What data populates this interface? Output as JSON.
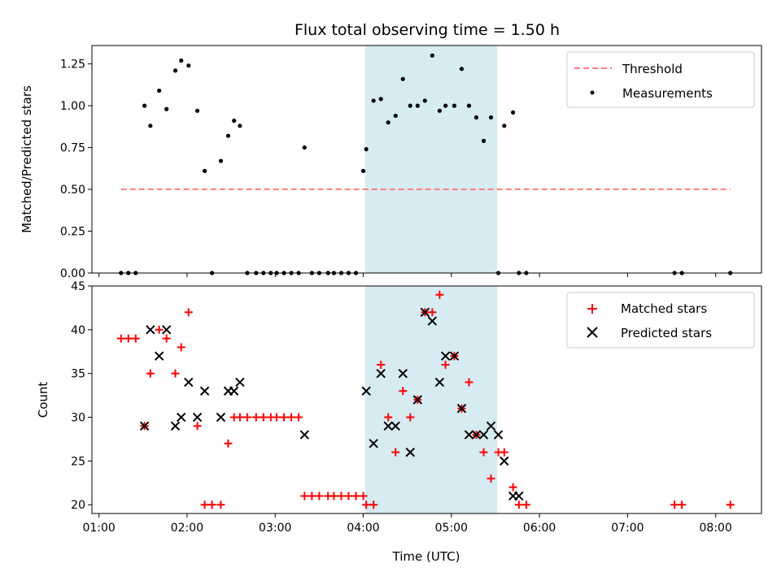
{
  "colors": {
    "highlight": "#add8e6",
    "threshold": "#ff7f7f",
    "matched": "#ff0000",
    "predicted": "#000000",
    "measurement": "#000000"
  },
  "chart_data": [
    {
      "type": "scatter",
      "title": "Flux total observing time = 1.50 h",
      "xlabel": "",
      "ylabel": "Matched/Predicted stars",
      "xlim_hours": [
        0.92,
        8.52
      ],
      "ylim": [
        0,
        1.36
      ],
      "yticks": [
        "0.00",
        "0.25",
        "0.50",
        "0.75",
        "1.00",
        "1.25"
      ],
      "highlight_span_hours": [
        4.02,
        5.52
      ],
      "legend_position": "top-right",
      "legend": [
        "Threshold",
        "Measurements"
      ],
      "series": [
        {
          "name": "Threshold",
          "style": "dashed-line",
          "x": [
            "01:15",
            "08:10"
          ],
          "y": [
            0.5,
            0.5
          ]
        },
        {
          "name": "Measurements",
          "style": "dots",
          "x": [
            "01:15",
            "01:20",
            "01:25",
            "01:31",
            "01:35",
            "01:41",
            "01:46",
            "01:52",
            "01:56",
            "02:01",
            "02:07",
            "02:12",
            "02:17",
            "02:23",
            "02:28",
            "02:32",
            "02:36",
            "02:41",
            "02:47",
            "02:52",
            "02:57",
            "03:01",
            "03:06",
            "03:11",
            "03:16",
            "03:20",
            "03:25",
            "03:30",
            "03:36",
            "03:40",
            "03:45",
            "03:50",
            "03:55",
            "04:00",
            "04:02",
            "04:07",
            "04:12",
            "04:17",
            "04:22",
            "04:27",
            "04:32",
            "04:37",
            "04:42",
            "04:47",
            "04:52",
            "04:56",
            "05:02",
            "05:07",
            "05:12",
            "05:17",
            "05:22",
            "05:27",
            "05:32",
            "05:36",
            "05:42",
            "05:46",
            "05:51",
            "07:32",
            "07:37",
            "08:10"
          ],
          "y": [
            0.0,
            0.0,
            0.0,
            1.0,
            0.88,
            1.09,
            0.98,
            1.21,
            1.27,
            1.24,
            0.97,
            0.61,
            0.0,
            0.67,
            0.82,
            0.91,
            0.88,
            0.0,
            0.0,
            0.0,
            0.0,
            0.0,
            0.0,
            0.0,
            0.0,
            0.75,
            0.0,
            0.0,
            0.0,
            0.0,
            0.0,
            0.0,
            0.0,
            0.61,
            0.74,
            1.03,
            1.04,
            0.9,
            0.94,
            1.16,
            1.0,
            1.0,
            1.03,
            1.3,
            0.97,
            1.0,
            1.0,
            1.22,
            1.0,
            0.93,
            0.79,
            0.93,
            0.0,
            0.88,
            0.96,
            0.0,
            0.0,
            0.0,
            0.0,
            0.0
          ]
        }
      ]
    },
    {
      "type": "scatter",
      "title": "",
      "xlabel": "Time (UTC)",
      "ylabel": "Count",
      "xlim_hours": [
        0.92,
        8.52
      ],
      "ylim": [
        19,
        45
      ],
      "yticks": [
        "20",
        "25",
        "30",
        "35",
        "40",
        "45"
      ],
      "xticks": [
        "01:00",
        "02:00",
        "03:00",
        "04:00",
        "05:00",
        "06:00",
        "07:00",
        "08:00"
      ],
      "highlight_span_hours": [
        4.02,
        5.52
      ],
      "legend_position": "top-right",
      "legend": [
        "Matched stars",
        "Predicted stars"
      ],
      "series": [
        {
          "name": "Matched stars",
          "marker": "plus",
          "x": [
            "01:15",
            "01:20",
            "01:25",
            "01:31",
            "01:35",
            "01:41",
            "01:46",
            "01:52",
            "01:56",
            "02:01",
            "02:07",
            "02:12",
            "02:17",
            "02:23",
            "02:28",
            "02:32",
            "02:36",
            "02:41",
            "02:47",
            "02:52",
            "02:57",
            "03:01",
            "03:06",
            "03:11",
            "03:16",
            "03:20",
            "03:25",
            "03:30",
            "03:36",
            "03:40",
            "03:45",
            "03:50",
            "03:55",
            "04:00",
            "04:02",
            "04:07",
            "04:12",
            "04:17",
            "04:22",
            "04:27",
            "04:32",
            "04:37",
            "04:42",
            "04:47",
            "04:52",
            "04:56",
            "05:02",
            "05:07",
            "05:12",
            "05:17",
            "05:22",
            "05:27",
            "05:32",
            "05:36",
            "05:42",
            "05:46",
            "05:51",
            "07:32",
            "07:37",
            "08:10"
          ],
          "y": [
            39,
            39,
            39,
            29,
            35,
            40,
            39,
            35,
            38,
            42,
            29,
            20,
            20,
            20,
            27,
            30,
            30,
            30,
            30,
            30,
            30,
            30,
            30,
            30,
            30,
            21,
            21,
            21,
            21,
            21,
            21,
            21,
            21,
            21,
            20,
            20,
            36,
            30,
            26,
            33,
            30,
            32,
            42,
            42,
            44,
            36,
            37,
            31,
            34,
            28,
            26,
            23,
            26,
            26,
            22,
            20,
            20,
            20,
            20,
            20
          ]
        },
        {
          "name": "Predicted stars",
          "marker": "x",
          "x": [
            "01:31",
            "01:35",
            "01:41",
            "01:46",
            "01:52",
            "01:56",
            "02:01",
            "02:07",
            "02:12",
            "02:23",
            "02:28",
            "02:32",
            "02:36",
            "03:20",
            "04:02",
            "04:07",
            "04:12",
            "04:17",
            "04:22",
            "04:27",
            "04:32",
            "04:37",
            "04:42",
            "04:47",
            "04:52",
            "04:56",
            "05:02",
            "05:07",
            "05:12",
            "05:17",
            "05:22",
            "05:27",
            "05:32",
            "05:36",
            "05:42",
            "05:46"
          ],
          "y": [
            29,
            40,
            37,
            40,
            29,
            30,
            34,
            30,
            33,
            30,
            33,
            33,
            34,
            28,
            33,
            27,
            35,
            29,
            29,
            35,
            26,
            32,
            42,
            41,
            34,
            37,
            37,
            31,
            28,
            28,
            28,
            29,
            28,
            25,
            21,
            21
          ]
        }
      ]
    }
  ]
}
